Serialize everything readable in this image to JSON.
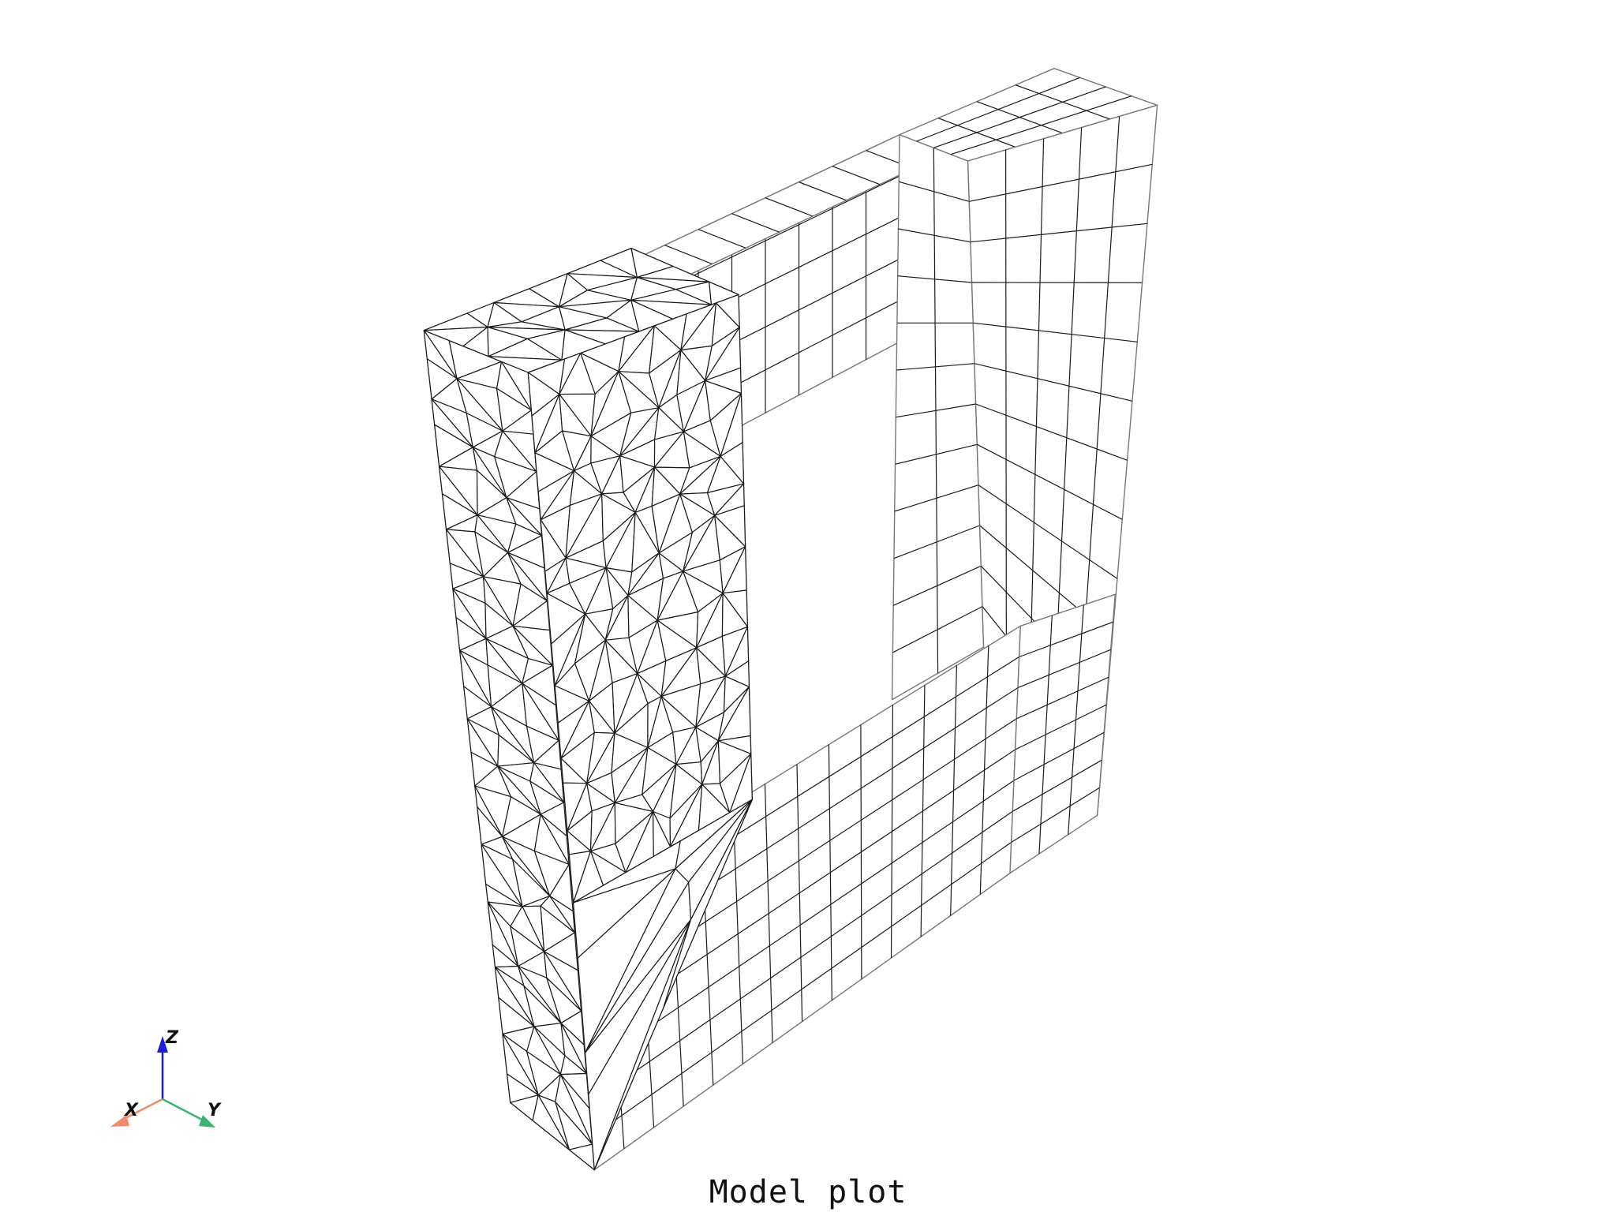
{
  "figure": {
    "title": "Model plot",
    "background": "#ffffff",
    "mesh": {
      "face_color": "#ffffff",
      "edge_color": "#1a1a1a",
      "silhouette_color": "#777777",
      "description_parts": [
        "tetrahedral-left-pillar",
        "hexahedral-top-beam",
        "hexahedral-right-pillar",
        "hexahedral-bottom-beam"
      ]
    },
    "orientation_axes": {
      "x": {
        "label": "X",
        "color": "#f08a6a"
      },
      "y": {
        "label": "Y",
        "color": "#3cb371"
      },
      "z": {
        "label": "Z",
        "color": "#1c1cdc"
      }
    }
  }
}
